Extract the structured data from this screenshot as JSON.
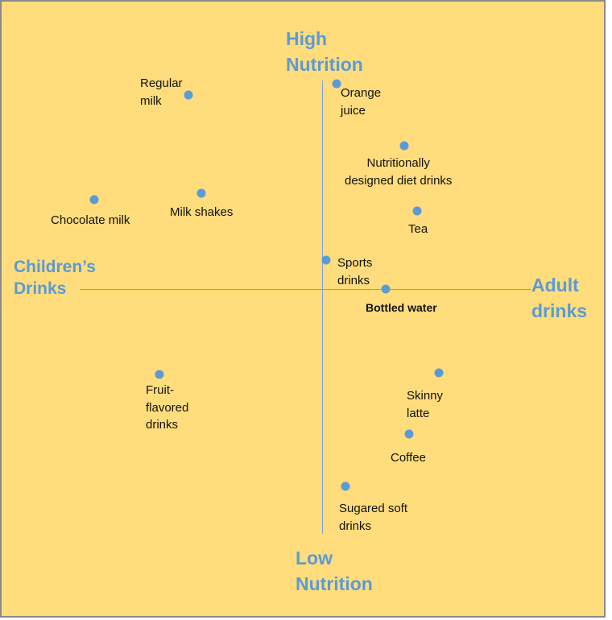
{
  "axes": {
    "top": "High\nNutrition",
    "bottom": "Low\nNutrition",
    "left": "Children’s\nDrinks",
    "right": "Adult\ndrinks"
  },
  "colors": {
    "background": "#ffdc7c",
    "accent": "#5b9bd5",
    "line": "#7da2d8"
  },
  "items": [
    {
      "label": "Regular\nmilk"
    },
    {
      "label": "Orange\njuice"
    },
    {
      "label": "Nutritionally\ndesigned diet drinks"
    },
    {
      "label": "Chocolate milk"
    },
    {
      "label": "Milk shakes"
    },
    {
      "label": "Tea"
    },
    {
      "label": "Sports\ndrinks"
    },
    {
      "label": "Bottled water"
    },
    {
      "label": "Fruit-\nflavored\ndrinks"
    },
    {
      "label": "Skinny\nlatte"
    },
    {
      "label": "Coffee"
    },
    {
      "label": "Sugared soft\ndrinks"
    }
  ]
}
